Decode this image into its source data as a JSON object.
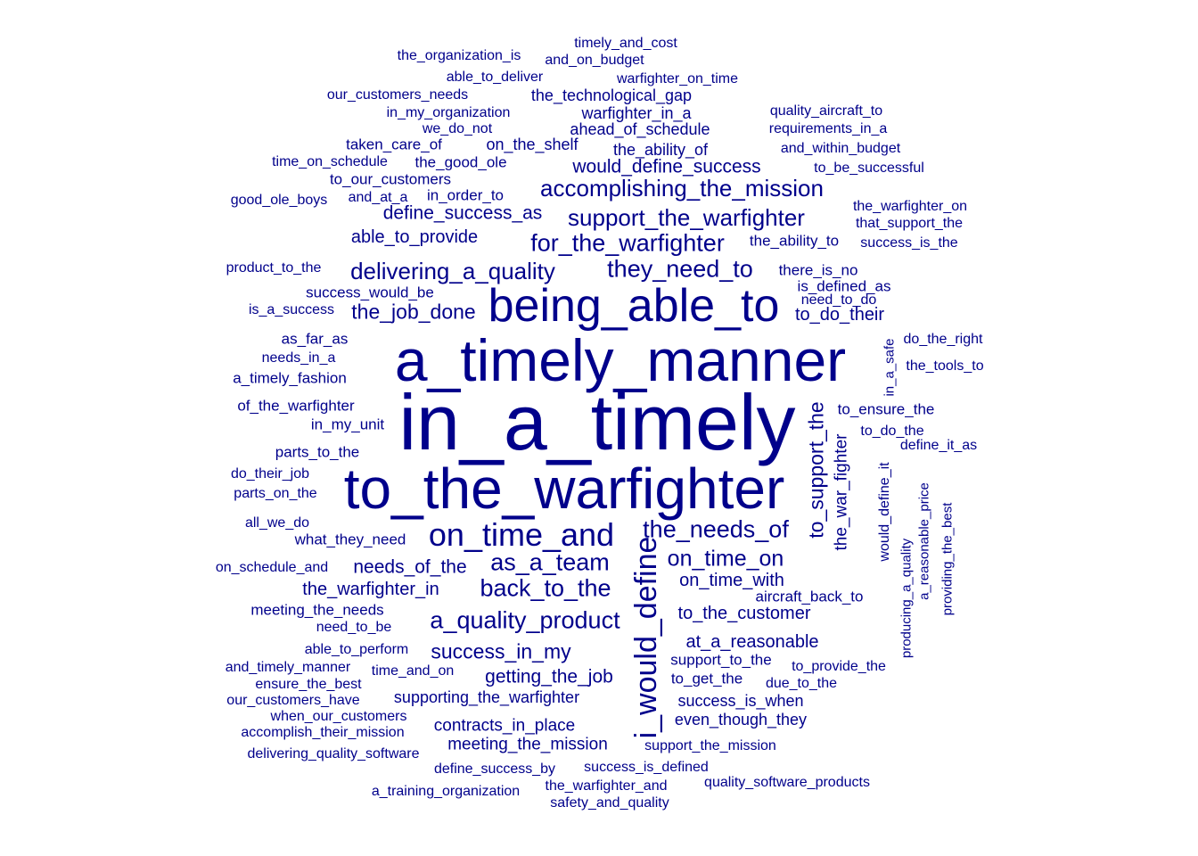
{
  "text_color": "#00008B",
  "words": [
    {
      "text": "in_a_timely",
      "size": 88
    },
    {
      "text": "a_timely_manner",
      "size": 66
    },
    {
      "text": "to_the_warfighter",
      "size": 64
    },
    {
      "text": "being_able_to",
      "size": 52
    },
    {
      "text": "on_time_and",
      "size": 36
    },
    {
      "text": "i_would_define",
      "size": 34,
      "vertical": true
    },
    {
      "text": "the_needs_of",
      "size": 27
    },
    {
      "text": "for_the_warfighter",
      "size": 27
    },
    {
      "text": "as_a_team",
      "size": 27
    },
    {
      "text": "back_to_the",
      "size": 27
    },
    {
      "text": "a_quality_product",
      "size": 27
    },
    {
      "text": "they_need_to",
      "size": 27
    },
    {
      "text": "delivering_a_quality",
      "size": 26
    },
    {
      "text": "support_the_warfighter",
      "size": 26
    },
    {
      "text": "accomplishing_the_mission",
      "size": 26
    },
    {
      "text": "on_time_on",
      "size": 25
    },
    {
      "text": "to_support_the",
      "size": 23,
      "vertical": true
    },
    {
      "text": "the_job_done",
      "size": 23
    },
    {
      "text": "success_in_my",
      "size": 23
    },
    {
      "text": "getting_the_job",
      "size": 21
    },
    {
      "text": "would_define_success",
      "size": 21
    },
    {
      "text": "needs_of_the",
      "size": 21
    },
    {
      "text": "define_success_as",
      "size": 21
    },
    {
      "text": "able_to_provide",
      "size": 20
    },
    {
      "text": "the_warfighter_in",
      "size": 20
    },
    {
      "text": "at_a_reasonable",
      "size": 20
    },
    {
      "text": "to_the_customer",
      "size": 20
    },
    {
      "text": "on_time_with",
      "size": 20
    },
    {
      "text": "to_do_their",
      "size": 20
    },
    {
      "text": "the_war_fighter",
      "size": 19,
      "vertical": true
    },
    {
      "text": "contracts_in_place",
      "size": 19
    },
    {
      "text": "meeting_the_mission",
      "size": 19
    },
    {
      "text": "supporting_the_warfighter",
      "size": 18
    },
    {
      "text": "success_is_when",
      "size": 18
    },
    {
      "text": "even_though_they",
      "size": 18
    },
    {
      "text": "ahead_of_schedule",
      "size": 18
    },
    {
      "text": "the_ability_of",
      "size": 18
    },
    {
      "text": "the_technological_gap",
      "size": 18
    },
    {
      "text": "warfighter_in_a",
      "size": 18
    },
    {
      "text": "to_get_the",
      "size": 17
    },
    {
      "text": "to_ensure_the",
      "size": 17
    },
    {
      "text": "taken_care_of",
      "size": 17
    },
    {
      "text": "on_the_shelf",
      "size": 18
    },
    {
      "text": "the_good_ole",
      "size": 17
    },
    {
      "text": "to_our_customers",
      "size": 17
    },
    {
      "text": "in_order_to",
      "size": 17
    },
    {
      "text": "success_would_be",
      "size": 17
    },
    {
      "text": "is_a_success",
      "size": 16
    },
    {
      "text": "a_timely_fashion",
      "size": 17
    },
    {
      "text": "of_the_warfighter",
      "size": 17
    },
    {
      "text": "in_my_unit",
      "size": 17
    },
    {
      "text": "parts_to_the",
      "size": 17
    },
    {
      "text": "what_they_need",
      "size": 17
    },
    {
      "text": "on_schedule_and",
      "size": 16
    },
    {
      "text": "meeting_the_needs",
      "size": 17
    },
    {
      "text": "need_to_be",
      "size": 16
    },
    {
      "text": "able_to_perform",
      "size": 16
    },
    {
      "text": "and_timely_manner",
      "size": 16
    },
    {
      "text": "time_and_on",
      "size": 16
    },
    {
      "text": "ensure_the_best",
      "size": 16
    },
    {
      "text": "our_customers_have",
      "size": 16
    },
    {
      "text": "when_our_customers",
      "size": 16
    },
    {
      "text": "accomplish_their_mission",
      "size": 16
    },
    {
      "text": "delivering_quality_software",
      "size": 16
    },
    {
      "text": "define_success_by",
      "size": 16
    },
    {
      "text": "success_is_defined",
      "size": 16
    },
    {
      "text": "a_training_organization",
      "size": 16
    },
    {
      "text": "the_warfighter_and",
      "size": 16
    },
    {
      "text": "safety_and_quality",
      "size": 16
    },
    {
      "text": "quality_software_products",
      "size": 16
    },
    {
      "text": "support_the_mission",
      "size": 16
    },
    {
      "text": "support_to_the",
      "size": 17
    },
    {
      "text": "to_provide_the",
      "size": 16
    },
    {
      "text": "due_to_the",
      "size": 16
    },
    {
      "text": "aircraft_back_to",
      "size": 17
    },
    {
      "text": "would_define_it",
      "size": 16,
      "vertical": true
    },
    {
      "text": "producing_a_quality",
      "size": 15,
      "vertical": true
    },
    {
      "text": "a_reasonable_price",
      "size": 15,
      "vertical": true
    },
    {
      "text": "providing_the_best",
      "size": 15,
      "vertical": true
    },
    {
      "text": "in_a_safe",
      "size": 15,
      "vertical": true
    },
    {
      "text": "define_it_as",
      "size": 16
    },
    {
      "text": "to_do_the",
      "size": 16
    },
    {
      "text": "the_tools_to",
      "size": 16
    },
    {
      "text": "do_the_right",
      "size": 16
    },
    {
      "text": "need_to_do",
      "size": 16
    },
    {
      "text": "is_defined_as",
      "size": 17
    },
    {
      "text": "there_is_no",
      "size": 17
    },
    {
      "text": "the_ability_to",
      "size": 17
    },
    {
      "text": "success_is_the",
      "size": 16
    },
    {
      "text": "that_support_the",
      "size": 16
    },
    {
      "text": "the_warfighter_on",
      "size": 16
    },
    {
      "text": "to_be_successful",
      "size": 16
    },
    {
      "text": "and_within_budget",
      "size": 16
    },
    {
      "text": "requirements_in_a",
      "size": 16
    },
    {
      "text": "quality_aircraft_to",
      "size": 16
    },
    {
      "text": "warfighter_on_time",
      "size": 16
    },
    {
      "text": "timely_and_cost",
      "size": 16
    },
    {
      "text": "and_on_budget",
      "size": 16
    },
    {
      "text": "the_organization_is",
      "size": 16
    },
    {
      "text": "able_to_deliver",
      "size": 16
    },
    {
      "text": "our_customers_needs",
      "size": 16
    },
    {
      "text": "in_my_organization",
      "size": 16
    },
    {
      "text": "we_do_not",
      "size": 16
    },
    {
      "text": "time_on_schedule",
      "size": 16
    },
    {
      "text": "good_ole_boys",
      "size": 16
    },
    {
      "text": "and_at_a",
      "size": 16
    },
    {
      "text": "product_to_the",
      "size": 16
    },
    {
      "text": "as_far_as",
      "size": 17
    },
    {
      "text": "needs_in_a",
      "size": 16
    },
    {
      "text": "do_their_job",
      "size": 16
    },
    {
      "text": "parts_on_the",
      "size": 16
    },
    {
      "text": "all_we_do",
      "size": 16
    }
  ]
}
